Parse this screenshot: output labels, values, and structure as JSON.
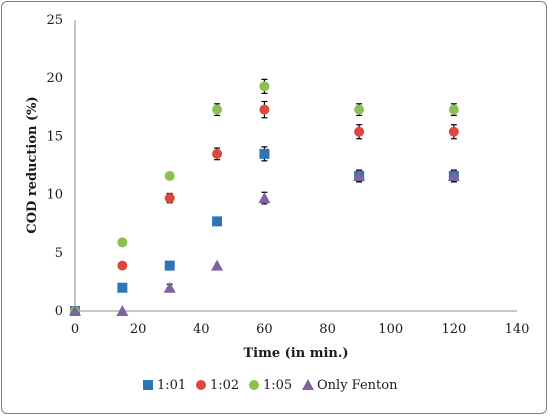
{
  "chart_data": {
    "type": "scatter",
    "xlabel": "Time (in min.)",
    "ylabel": "COD reduction (%)",
    "xlim": [
      0,
      140
    ],
    "ylim": [
      0,
      25
    ],
    "xticks": [
      0,
      20,
      40,
      60,
      80,
      100,
      120,
      140
    ],
    "yticks": [
      0,
      5,
      10,
      15,
      20,
      25
    ],
    "grid": false,
    "legend_position": "bottom",
    "x": [
      0,
      15,
      30,
      45,
      60,
      90,
      120
    ],
    "series": [
      {
        "name": "1:01",
        "marker": "square",
        "color": "#2e75b6",
        "values": [
          0,
          2.0,
          3.9,
          7.7,
          13.5,
          11.6,
          11.6
        ],
        "errors": [
          0,
          0,
          0,
          0,
          0.6,
          0.5,
          0.5
        ]
      },
      {
        "name": "1:02",
        "marker": "circle",
        "color": "#e0463e",
        "values": [
          0,
          3.9,
          9.7,
          13.5,
          17.3,
          15.4,
          15.4
        ],
        "errors": [
          0,
          0,
          0.4,
          0.5,
          0.7,
          0.6,
          0.6
        ]
      },
      {
        "name": "1:05",
        "marker": "circle",
        "color": "#8cc152",
        "values": [
          0,
          5.9,
          11.6,
          17.3,
          19.3,
          17.3,
          17.3
        ],
        "errors": [
          0,
          0,
          0.3,
          0.5,
          0.6,
          0.5,
          0.5
        ]
      },
      {
        "name": "Only Fenton",
        "marker": "triangle",
        "color": "#8064a2",
        "values": [
          0,
          0,
          2.0,
          3.9,
          9.7,
          11.6,
          11.6
        ],
        "errors": [
          0,
          0,
          0.3,
          0,
          0.5,
          0.5,
          0.5
        ]
      }
    ]
  }
}
